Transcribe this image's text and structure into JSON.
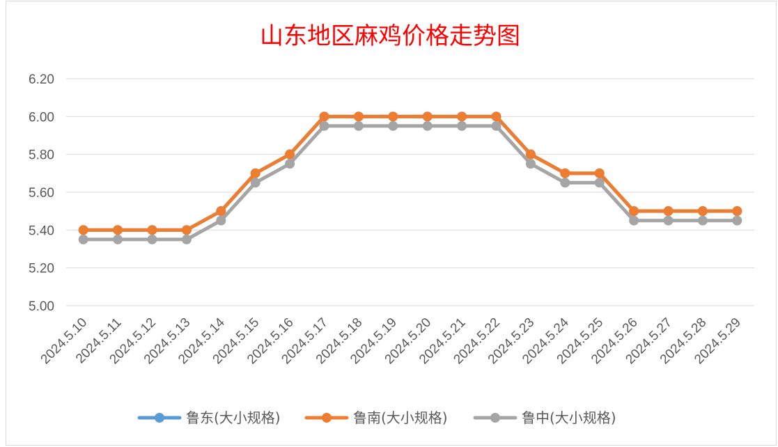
{
  "chart_data": {
    "type": "line",
    "title": "山东地区麻鸡价格走势图",
    "xlabel": "",
    "ylabel": "",
    "ylim": [
      5.0,
      6.2
    ],
    "yticks": [
      "5.00",
      "5.20",
      "5.40",
      "5.60",
      "5.80",
      "6.00",
      "6.20"
    ],
    "grid": true,
    "legend_position": "bottom",
    "categories": [
      "2024.5.10",
      "2024.5.11",
      "2024.5.12",
      "2024.5.13",
      "2024.5.14",
      "2024.5.15",
      "2024.5.16",
      "2024.5.17",
      "2024.5.18",
      "2024.5.19",
      "2024.5.20",
      "2024.5.21",
      "2024.5.22",
      "2024.5.23",
      "2024.5.24",
      "2024.5.25",
      "2024.5.26",
      "2024.5.27",
      "2024.5.28",
      "2024.5.29"
    ],
    "series": [
      {
        "name": "鲁东(大小规格)",
        "color": "#5b9bd5",
        "values": [
          5.4,
          5.4,
          5.4,
          5.4,
          5.5,
          5.7,
          5.8,
          6.0,
          6.0,
          6.0,
          6.0,
          6.0,
          6.0,
          5.8,
          5.7,
          5.7,
          5.5,
          5.5,
          5.5,
          5.5
        ]
      },
      {
        "name": "鲁南(大小规格)",
        "color": "#ed7d31",
        "values": [
          5.4,
          5.4,
          5.4,
          5.4,
          5.5,
          5.7,
          5.8,
          6.0,
          6.0,
          6.0,
          6.0,
          6.0,
          6.0,
          5.8,
          5.7,
          5.7,
          5.5,
          5.5,
          5.5,
          5.5
        ]
      },
      {
        "name": "鲁中(大小规格)",
        "color": "#a5a5a5",
        "values": [
          5.35,
          5.35,
          5.35,
          5.35,
          5.45,
          5.65,
          5.75,
          5.95,
          5.95,
          5.95,
          5.95,
          5.95,
          5.95,
          5.75,
          5.65,
          5.65,
          5.45,
          5.45,
          5.45,
          5.45
        ]
      }
    ]
  }
}
